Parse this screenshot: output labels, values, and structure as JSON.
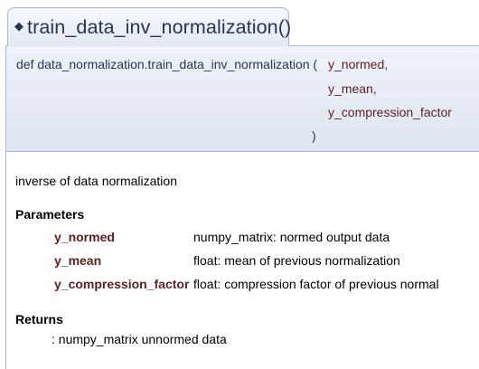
{
  "header": {
    "bullet": "◆",
    "title": "train_data_inv_normalization()"
  },
  "prototype": {
    "def": "def data_normalization.train_data_inv_normalization (",
    "params": [
      "y_normed,",
      "y_mean,",
      "y_compression_factor"
    ],
    "close": ")"
  },
  "doc": {
    "description": "inverse of data normalization",
    "parameters_heading": "Parameters",
    "parameters": [
      {
        "name": "y_normed",
        "desc": "numpy_matrix: normed output data"
      },
      {
        "name": "y_mean",
        "desc": "float: mean of previous normalization"
      },
      {
        "name": "y_compression_factor",
        "desc": "float: compression factor of previous normal"
      }
    ],
    "returns_heading": "Returns",
    "returns_value": ": numpy_matrix unnormed data"
  }
}
